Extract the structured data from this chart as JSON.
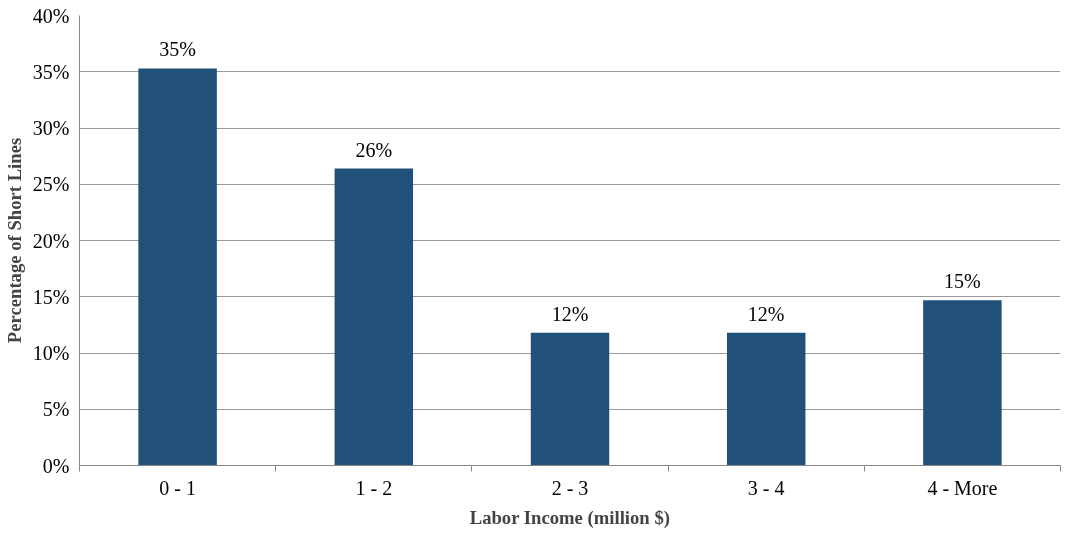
{
  "chart_data": {
    "type": "bar",
    "xlabel": "Labor Income (million $)",
    "ylabel": "Percentage of Short Lines",
    "categories": [
      "0 - 1",
      "1 - 2",
      "2 - 3",
      "3 - 4",
      "4 - More"
    ],
    "values": [
      35.3,
      26.4,
      11.8,
      11.8,
      14.7
    ],
    "color": "#215078",
    "value_labels": [
      "35%",
      "26%",
      "12%",
      "12%",
      "15%"
    ],
    "ylim": [
      0,
      40
    ],
    "yticks": [
      {
        "value": 0,
        "label": "0%"
      },
      {
        "value": 5,
        "label": "5%"
      },
      {
        "value": 10,
        "label": "10%"
      },
      {
        "value": 15,
        "label": "15%"
      },
      {
        "value": 20,
        "label": "20%"
      },
      {
        "value": 25,
        "label": "25%"
      },
      {
        "value": 30,
        "label": "30%"
      },
      {
        "value": 35,
        "label": "35%"
      },
      {
        "value": 40,
        "label": "40%"
      }
    ],
    "grid": "y"
  }
}
